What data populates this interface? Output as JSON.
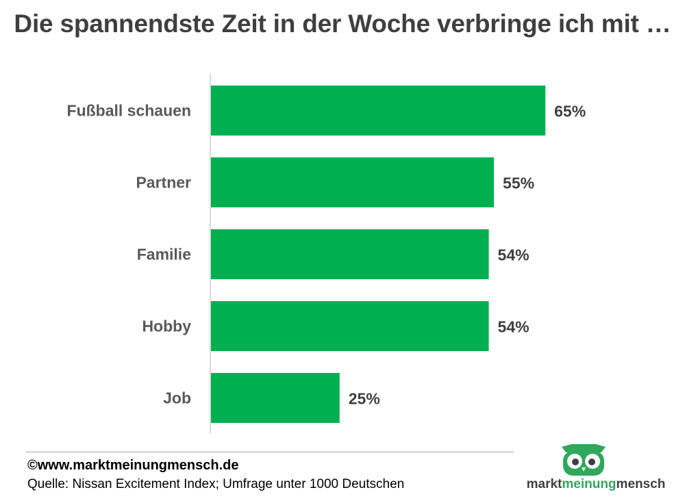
{
  "title": "Die spannendste Zeit in der Woche verbringe ich mit …",
  "chart_data": {
    "type": "bar",
    "orientation": "horizontal",
    "categories": [
      "Fußball schauen",
      "Partner",
      "Familie",
      "Hobby",
      "Job"
    ],
    "values": [
      65,
      55,
      54,
      54,
      25
    ],
    "data_labels": [
      "65%",
      "55%",
      "54%",
      "54%",
      "25%"
    ],
    "unit": "%",
    "xlim": [
      0,
      100
    ],
    "grid": false,
    "bar_color": "#00b050"
  },
  "footer": {
    "copyright": "©www.marktmeinungmensch.de",
    "source": "Quelle: Nissan Excitement Index; Umfrage unter 1000 Deutschen"
  },
  "logo": {
    "text_before": "markt",
    "text_accent": "meinung",
    "text_after": "mensch",
    "accent_color": "#2fa85a",
    "icon": "owl-icon"
  }
}
